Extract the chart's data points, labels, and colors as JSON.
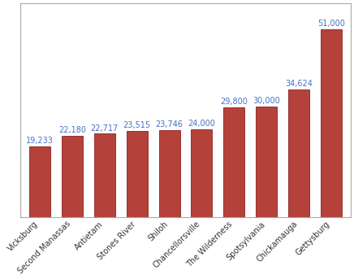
{
  "categories": [
    "Vicksburg",
    "Second Manassas",
    "Antietam",
    "Stones River",
    "Shiloh",
    "Chancellorsville",
    "The Wilderness",
    "Spotsylvania",
    "Chickamauga",
    "Gettysburg"
  ],
  "values": [
    19233,
    22180,
    22717,
    23515,
    23746,
    24000,
    29800,
    30000,
    34624,
    51000
  ],
  "bar_color": "#B5423A",
  "bar_edge_color": "#8B2020",
  "value_label_color": "#4472C4",
  "value_labels": [
    "19,233",
    "22,180",
    "22,717",
    "23,515",
    "23,746",
    "24,000",
    "29,800",
    "30,000",
    "34,624",
    "51,000"
  ],
  "ylim": [
    0,
    58000
  ],
  "background_color": "#ffffff",
  "figure_background": "#ffffff",
  "xlabel": "",
  "ylabel": "",
  "title": "",
  "tick_label_fontsize": 7.0,
  "value_label_fontsize": 7.0,
  "bar_width": 0.65,
  "border_color": "#aaaaaa"
}
